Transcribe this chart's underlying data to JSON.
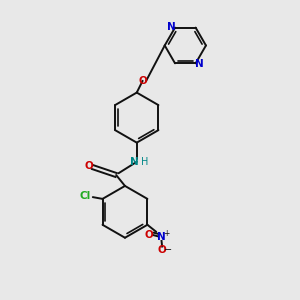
{
  "bg": "#e8e8e8",
  "bc": "#111111",
  "Nc": "#0000cc",
  "Oc": "#cc0000",
  "Clc": "#22aa22",
  "NHc": "#008888",
  "figsize": [
    3.0,
    3.0
  ],
  "dpi": 100,
  "xlim": [
    0,
    10
  ],
  "ylim": [
    0,
    10
  ]
}
